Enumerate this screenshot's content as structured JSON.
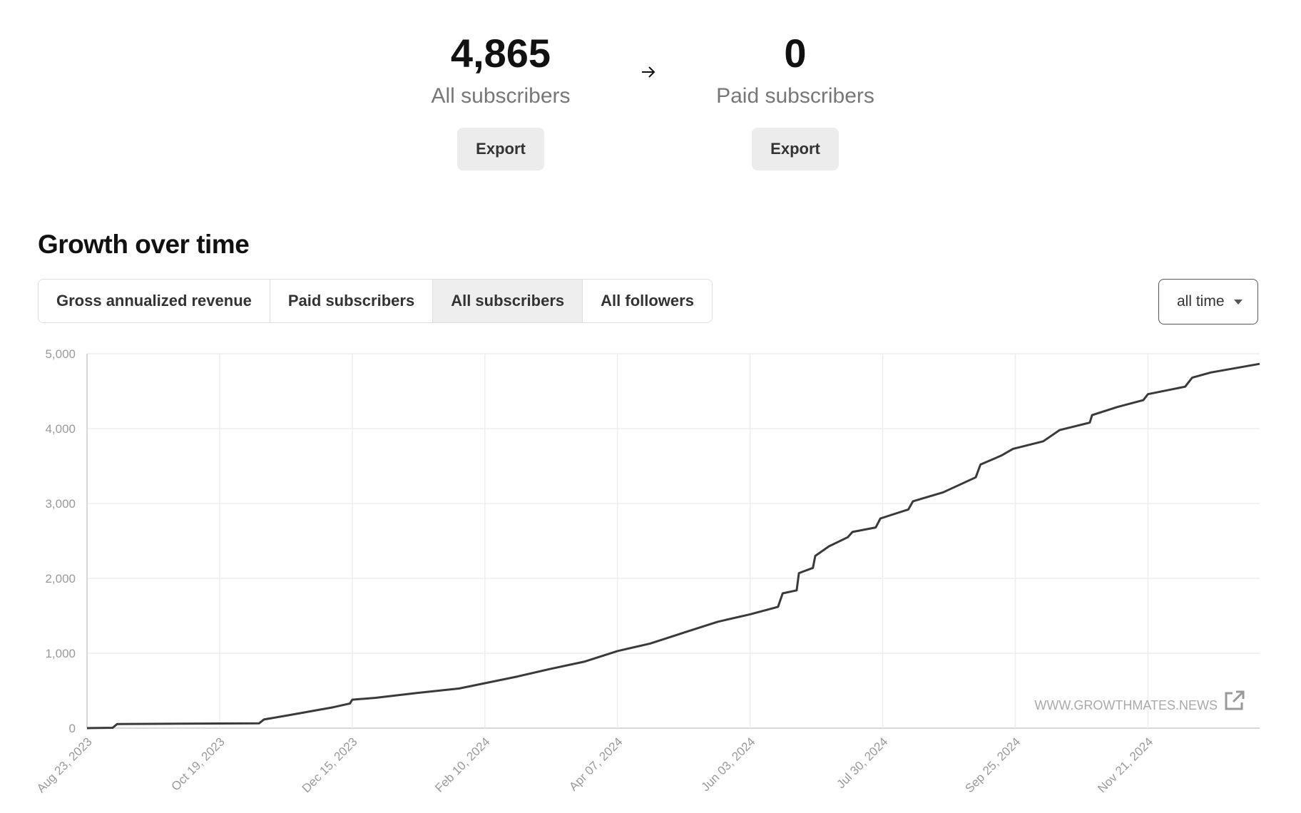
{
  "header": {
    "stats": [
      {
        "value": "4,865",
        "label": "All subscribers",
        "button": "Export"
      },
      {
        "value": "0",
        "label": "Paid subscribers",
        "button": "Export"
      }
    ]
  },
  "section_title": "Growth over time",
  "tabs": [
    "Gross annualized revenue",
    "Paid subscribers",
    "All subscribers",
    "All followers"
  ],
  "active_tab": 2,
  "range": "all time",
  "watermark": "WWW.GROWTHMATES.NEWS",
  "chart_data": {
    "type": "line",
    "color": "#3a3a3a",
    "grid": true,
    "x": [
      "2023-08-23",
      "2023-09-03",
      "2023-09-05",
      "2023-11-05",
      "2023-11-07",
      "2023-11-19",
      "2023-12-07",
      "2023-12-14",
      "2023-12-15",
      "2023-12-25",
      "2024-01-12",
      "2024-01-30",
      "2024-02-10",
      "2024-02-24",
      "2024-03-09",
      "2024-03-24",
      "2024-04-07",
      "2024-04-21",
      "2024-05-06",
      "2024-05-20",
      "2024-06-03",
      "2024-06-15",
      "2024-06-17",
      "2024-06-23",
      "2024-06-24",
      "2024-06-30",
      "2024-07-01",
      "2024-07-07",
      "2024-07-15",
      "2024-07-17",
      "2024-07-27",
      "2024-07-29",
      "2024-08-10",
      "2024-08-12",
      "2024-08-25",
      "2024-09-08",
      "2024-09-10",
      "2024-09-19",
      "2024-09-24",
      "2024-10-07",
      "2024-10-14",
      "2024-10-27",
      "2024-10-28",
      "2024-11-08",
      "2024-11-19",
      "2024-11-21",
      "2024-12-07",
      "2024-12-10",
      "2024-12-18",
      "2025-01-08"
    ],
    "series": [
      {
        "name": "All subscribers",
        "color": "#3a3a3a",
        "values": [
          0,
          5,
          55,
          65,
          115,
          180,
          280,
          330,
          380,
          405,
          470,
          530,
          600,
          690,
          790,
          890,
          1030,
          1130,
          1280,
          1420,
          1520,
          1620,
          1800,
          1840,
          2070,
          2140,
          2300,
          2430,
          2550,
          2620,
          2680,
          2800,
          2920,
          3030,
          3150,
          3350,
          3520,
          3640,
          3730,
          3830,
          3980,
          4080,
          4180,
          4290,
          4380,
          4460,
          4560,
          4680,
          4750,
          4865
        ]
      }
    ],
    "xlim": [
      "2023-08-23",
      "2025-01-08"
    ],
    "xticks": [
      {
        "value": "2023-08-23",
        "label": "Aug 23, 2023"
      },
      {
        "value": "2023-10-19",
        "label": "Oct 19, 2023"
      },
      {
        "value": "2023-12-15",
        "label": "Dec 15, 2023"
      },
      {
        "value": "2024-02-10",
        "label": "Feb 10, 2024"
      },
      {
        "value": "2024-04-07",
        "label": "Apr 07, 2024"
      },
      {
        "value": "2024-06-03",
        "label": "Jun 03, 2024"
      },
      {
        "value": "2024-07-30",
        "label": "Jul 30, 2024"
      },
      {
        "value": "2024-09-25",
        "label": "Sep 25, 2024"
      },
      {
        "value": "2024-11-21",
        "label": "Nov 21, 2024"
      }
    ],
    "ylim": [
      0,
      5000
    ],
    "yticks": [
      0,
      {
        "value": 1000,
        "label": "1,000"
      },
      {
        "value": 2000,
        "label": "2,000"
      },
      {
        "value": 3000,
        "label": "3,000"
      },
      {
        "value": 4000,
        "label": "4,000"
      },
      {
        "value": 5000,
        "label": "5,000"
      }
    ]
  }
}
